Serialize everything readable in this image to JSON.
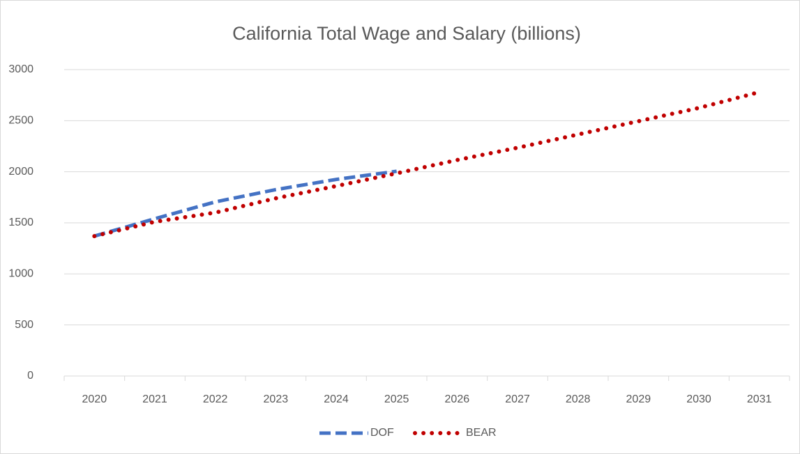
{
  "chart_data": {
    "type": "line",
    "title": "California Total Wage and Salary (billions)",
    "categories": [
      "2020",
      "2021",
      "2022",
      "2023",
      "2024",
      "2025",
      "2026",
      "2027",
      "2028",
      "2029",
      "2030",
      "2031"
    ],
    "series": [
      {
        "name": "DOF",
        "color": "#4472c4",
        "style": "dashed",
        "values": [
          1370,
          1540,
          1705,
          1825,
          1925,
          2005,
          null,
          null,
          null,
          null,
          null,
          null
        ]
      },
      {
        "name": "BEAR",
        "color": "#c00000",
        "style": "dotted",
        "values": [
          1370,
          1510,
          1600,
          1740,
          1860,
          1985,
          2115,
          2235,
          2365,
          2495,
          2625,
          2780
        ]
      }
    ],
    "ylim": [
      0,
      3000
    ],
    "yticks": [
      0,
      500,
      1000,
      1500,
      2000,
      2500,
      3000
    ],
    "grid": true,
    "legend": "bottom"
  }
}
